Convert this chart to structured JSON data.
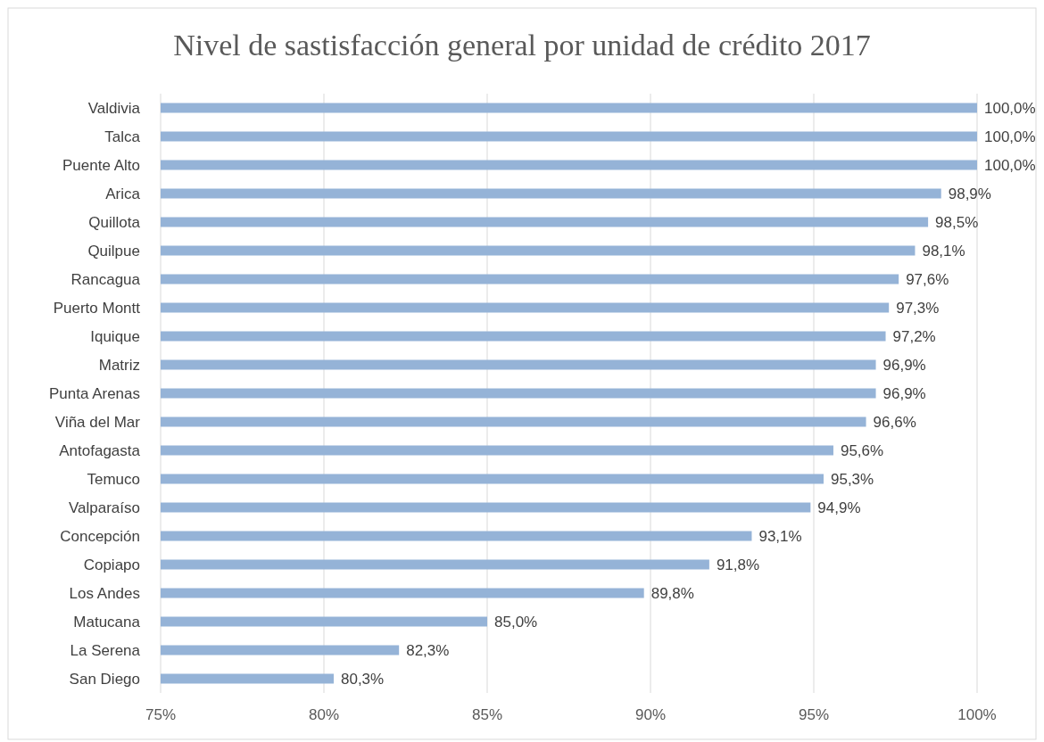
{
  "chart_data": {
    "type": "bar",
    "orientation": "horizontal",
    "title": "Nivel de sastisfacción general por unidad de crédito 2017",
    "categories": [
      "Valdivia",
      "Talca",
      "Puente Alto",
      "Arica",
      "Quillota",
      "Quilpue",
      "Rancagua",
      "Puerto Montt",
      "Iquique",
      "Matriz",
      "Punta Arenas",
      "Viña del Mar",
      "Antofagasta",
      "Temuco",
      "Valparaíso",
      "Concepción",
      "Copiapo",
      "Los Andes",
      "Matucana",
      "La Serena",
      "San Diego"
    ],
    "values": [
      100,
      100,
      100,
      98.9,
      98.5,
      98.1,
      97.6,
      97.3,
      97.2,
      96.9,
      96.9,
      96.6,
      95.6,
      95.3,
      94.9,
      93.1,
      91.8,
      89.8,
      85.0,
      82.3,
      80.3
    ],
    "value_labels": [
      "100,0%",
      "100,0%",
      "100,0%",
      "98,9%",
      "98,5%",
      "98,1%",
      "97,6%",
      "97,3%",
      "97,2%",
      "96,9%",
      "96,9%",
      "96,6%",
      "95,6%",
      "95,3%",
      "94,9%",
      "93,1%",
      "91,8%",
      "89,8%",
      "85,0%",
      "82,3%",
      "80,3%"
    ],
    "color": "#95b3d7",
    "xlim": [
      75,
      100
    ],
    "xticks": [
      {
        "value": 75,
        "label": "75%"
      },
      {
        "value": 80,
        "label": "80%"
      },
      {
        "value": 85,
        "label": "85%"
      },
      {
        "value": 90,
        "label": "90%"
      },
      {
        "value": 95,
        "label": "95%"
      },
      {
        "value": 100,
        "label": "100%"
      }
    ],
    "grid": "x"
  }
}
